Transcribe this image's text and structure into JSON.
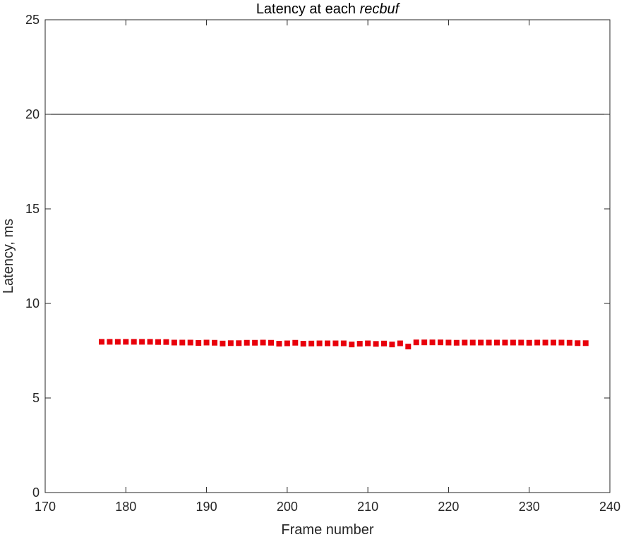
{
  "chart_data": {
    "type": "scatter",
    "title_prefix": "Latency at each ",
    "title_italic": "recbuf",
    "xlabel": "Frame number",
    "ylabel": "Latency, ms",
    "xlim": [
      170,
      240
    ],
    "ylim": [
      0,
      25
    ],
    "xticks": [
      170,
      180,
      190,
      200,
      210,
      220,
      230,
      240
    ],
    "yticks": [
      0,
      5,
      10,
      15,
      20,
      25
    ],
    "hline": 20,
    "marker": "square",
    "colors": {
      "points": "#e8000b",
      "hline": "#000000",
      "axes": "#262626"
    },
    "x": [
      177,
      178,
      179,
      180,
      181,
      182,
      183,
      184,
      185,
      186,
      187,
      188,
      189,
      190,
      191,
      192,
      193,
      194,
      195,
      196,
      197,
      198,
      199,
      200,
      201,
      202,
      203,
      204,
      205,
      206,
      207,
      208,
      209,
      210,
      211,
      212,
      213,
      214,
      215,
      216,
      217,
      218,
      219,
      220,
      221,
      222,
      223,
      224,
      225,
      226,
      227,
      228,
      229,
      230,
      231,
      232,
      233,
      234,
      235,
      236,
      237
    ],
    "y": [
      7.97,
      7.97,
      7.97,
      7.97,
      7.97,
      7.97,
      7.97,
      7.96,
      7.96,
      7.93,
      7.93,
      7.93,
      7.91,
      7.93,
      7.92,
      7.88,
      7.9,
      7.9,
      7.92,
      7.92,
      7.93,
      7.92,
      7.87,
      7.89,
      7.92,
      7.87,
      7.88,
      7.89,
      7.89,
      7.89,
      7.89,
      7.83,
      7.87,
      7.89,
      7.86,
      7.88,
      7.83,
      7.89,
      7.72,
      7.94,
      7.94,
      7.94,
      7.94,
      7.93,
      7.92,
      7.93,
      7.93,
      7.93,
      7.93,
      7.93,
      7.93,
      7.93,
      7.93,
      7.92,
      7.93,
      7.93,
      7.93,
      7.93,
      7.92,
      7.9,
      7.9
    ]
  }
}
